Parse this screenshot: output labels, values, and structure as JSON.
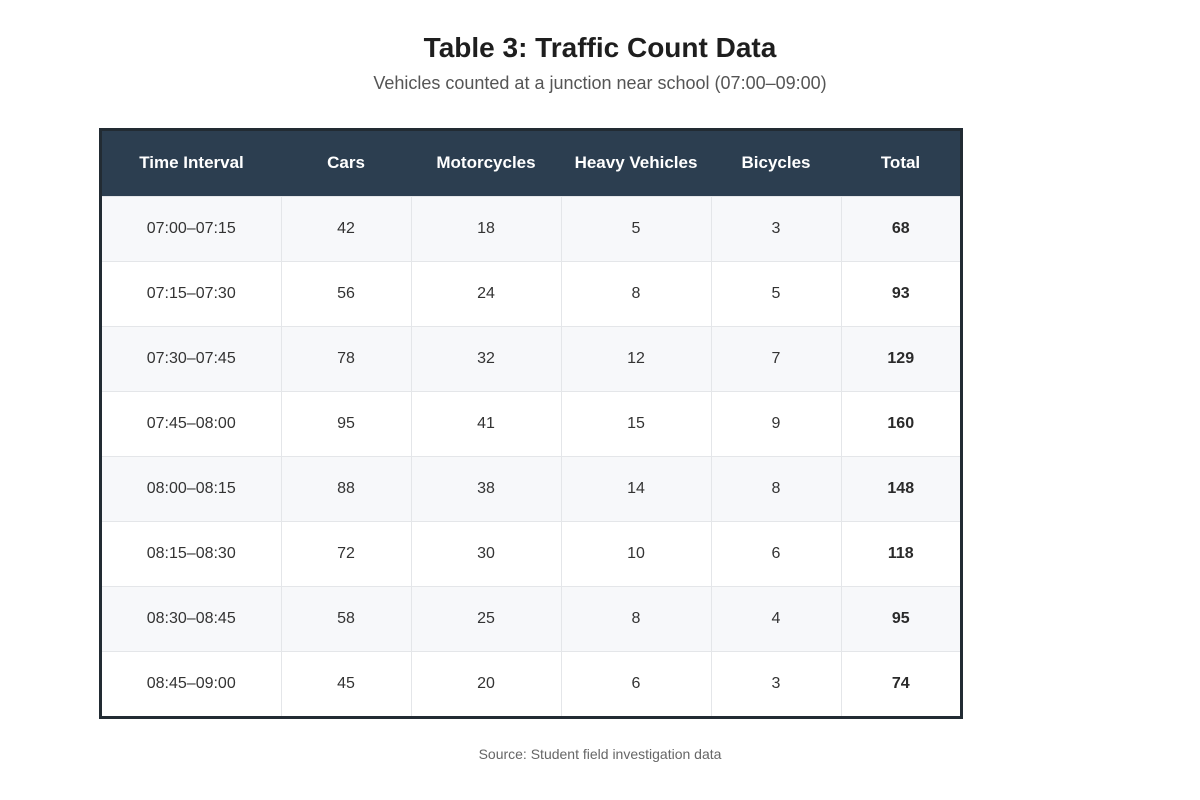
{
  "chart_data": {
    "type": "table",
    "title": "Table 3: Traffic Count Data",
    "subtitle": "Vehicles counted at a junction near school (07:00–09:00)",
    "columns": [
      "Time Interval",
      "Cars",
      "Motorcycles",
      "Heavy Vehicles",
      "Bicycles",
      "Total"
    ],
    "rows": [
      [
        "07:00–07:15",
        "42",
        "18",
        "5",
        "3",
        "68"
      ],
      [
        "07:15–07:30",
        "56",
        "24",
        "8",
        "5",
        "93"
      ],
      [
        "07:30–07:45",
        "78",
        "32",
        "12",
        "7",
        "129"
      ],
      [
        "07:45–08:00",
        "95",
        "41",
        "15",
        "9",
        "160"
      ],
      [
        "08:00–08:15",
        "88",
        "38",
        "14",
        "8",
        "148"
      ],
      [
        "08:15–08:30",
        "72",
        "30",
        "10",
        "6",
        "118"
      ],
      [
        "08:30–08:45",
        "58",
        "25",
        "8",
        "4",
        "95"
      ],
      [
        "08:45–09:00",
        "45",
        "20",
        "6",
        "3",
        "74"
      ]
    ],
    "source": "Source: Student field investigation data"
  },
  "colors": {
    "header_background": "#2c3e50",
    "header_text": "#ffffff",
    "row_alt_background": "#f7f8fa",
    "border": "#222b33"
  }
}
